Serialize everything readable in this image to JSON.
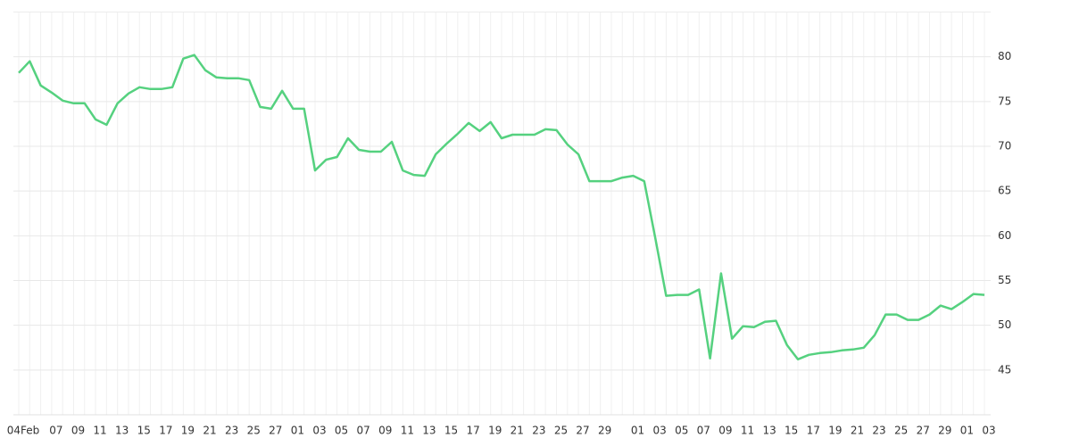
{
  "chart_data": {
    "type": "line",
    "categories": [
      "04Feb",
      null,
      null,
      "07",
      null,
      "09",
      null,
      "11",
      null,
      "13",
      null,
      "15",
      null,
      "17",
      null,
      "19",
      null,
      "21",
      null,
      "23",
      null,
      "25",
      null,
      "27",
      null,
      "01",
      null,
      "03",
      null,
      "05",
      null,
      "07",
      null,
      "09",
      null,
      "11",
      null,
      "13",
      null,
      "15",
      null,
      "17",
      null,
      "19",
      null,
      "21",
      null,
      "23",
      null,
      "25",
      null,
      "27",
      null,
      "29",
      null,
      null,
      "01",
      null,
      "03",
      null,
      "05",
      null,
      "07",
      null,
      "09",
      null,
      "11",
      null,
      "13",
      null,
      "15",
      null,
      "17",
      null,
      "19",
      null,
      "21",
      null,
      "23",
      null,
      "25",
      null,
      "27",
      null,
      "29",
      null,
      "01",
      null,
      "03"
    ],
    "series": [
      {
        "color": "#55d17f",
        "values": [
          78.2,
          79.5,
          76.8,
          76.0,
          75.1,
          74.8,
          74.8,
          73.0,
          72.4,
          74.8,
          75.9,
          76.6,
          76.4,
          76.4,
          76.6,
          79.8,
          80.2,
          78.5,
          77.7,
          77.6,
          77.6,
          77.4,
          74.4,
          74.2,
          76.2,
          74.2,
          74.2,
          67.3,
          68.5,
          68.8,
          70.9,
          69.6,
          69.4,
          69.4,
          70.5,
          67.3,
          66.8,
          66.7,
          69.1,
          70.3,
          71.4,
          72.6,
          71.7,
          72.7,
          70.9,
          71.3,
          71.3,
          71.3,
          71.9,
          71.8,
          70.2,
          69.1,
          66.1,
          66.1,
          66.1,
          66.5,
          66.7,
          66.1,
          59.8,
          53.3,
          53.4,
          53.4,
          54.0,
          46.3,
          55.8,
          48.5,
          49.9,
          49.8,
          50.4,
          50.5,
          47.8,
          46.2,
          46.7,
          46.9,
          47.0,
          47.2,
          47.3,
          47.5,
          48.9,
          51.2,
          51.2,
          50.6,
          50.6,
          51.2,
          52.2,
          51.8,
          52.6,
          53.5,
          53.4
        ]
      }
    ],
    "ylim": [
      40,
      85
    ],
    "yticks": [
      45,
      50,
      55,
      60,
      65,
      70,
      75,
      80
    ],
    "grid": true,
    "y_axis_side": "right"
  }
}
